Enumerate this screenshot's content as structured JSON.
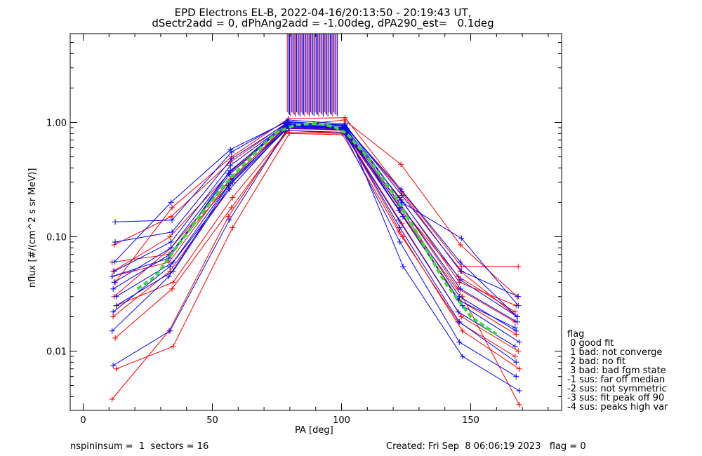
{
  "header": {
    "title_line1": "EPD Electrons EL-B, 2022-04-16/20:13:50 - 20:19:43 UT,",
    "title_line2": "dSectr2add = 0, dPhAng2add = -1.00deg, dPA290_est=   0.1deg"
  },
  "footer": {
    "left": "nspininsum =  1  sectors = 16",
    "right": "Created: Fri Sep  8 06:06:19 2023   flag = 0"
  },
  "legend": {
    "title": "flag",
    "items": [
      " 0 good fit",
      " 1 bad: not converge",
      " 2 bad: no fit",
      " 3 bad: bad fgm state",
      "-1 sus: far off median",
      "-2 sus: not symmetric",
      "-3 sus: fit peak off 90",
      "-4 sus: peaks high var"
    ]
  },
  "colors": {
    "red": "#ff0000",
    "blue": "#0000ff",
    "fit": "#33dd33",
    "axis": "#000000"
  },
  "chart_data": {
    "type": "line",
    "xlabel": "PA [deg]",
    "ylabel": "nflux [#/(cm^2 s sr MeV)]",
    "xlim": [
      -5,
      185
    ],
    "ylim": [
      0.0032,
      6.0
    ],
    "yscale": "log",
    "xticks": [
      0,
      50,
      100,
      150
    ],
    "yticks": [
      {
        "value": 0.01,
        "label": "0.01"
      },
      {
        "value": 0.1,
        "label": "0.10"
      },
      {
        "value": 1.0,
        "label": "1.00"
      }
    ],
    "pa_bins": [
      12,
      34,
      57,
      79,
      101,
      123,
      146,
      168
    ],
    "median_fit": {
      "name": "",
      "x": [
        21,
        28,
        35,
        45,
        55,
        65,
        75,
        82,
        90,
        97,
        102,
        110,
        120,
        130,
        140,
        150,
        160
      ],
      "y": [
        0.035,
        0.045,
        0.075,
        0.15,
        0.29,
        0.5,
        0.82,
        0.95,
        0.98,
        0.92,
        0.8,
        0.5,
        0.24,
        0.1,
        0.04,
        0.02,
        0.014
      ]
    },
    "series": [
      {
        "color": "red",
        "values": [
          0.045,
          0.06,
          0.3,
          0.92,
          0.88,
          0.2,
          0.035,
          0.018
        ]
      },
      {
        "color": "red",
        "values": [
          0.02,
          0.05,
          0.26,
          0.9,
          0.85,
          0.17,
          0.028,
          0.014
        ]
      },
      {
        "color": "red",
        "values": [
          0.085,
          0.15,
          0.45,
          1.0,
          0.95,
          0.25,
          0.05,
          0.02
        ]
      },
      {
        "color": "red",
        "values": [
          0.013,
          0.035,
          0.18,
          0.85,
          0.8,
          0.13,
          0.02,
          0.01
        ]
      },
      {
        "color": "red",
        "values": [
          0.007,
          0.011,
          0.12,
          0.8,
          0.78,
          0.1,
          0.015,
          0.007
        ]
      },
      {
        "color": "red",
        "values": [
          0.0038,
          0.015,
          0.15,
          0.82,
          0.8,
          0.11,
          0.018,
          0.009
        ]
      },
      {
        "color": "red",
        "values": [
          0.05,
          0.1,
          0.36,
          0.95,
          0.9,
          0.22,
          0.04,
          0.025
        ]
      },
      {
        "color": "red",
        "values": [
          0.03,
          0.08,
          0.32,
          0.93,
          1.05,
          0.43,
          0.085,
          0.03
        ]
      },
      {
        "color": "red",
        "values": [
          0.04,
          0.18,
          0.5,
          1.08,
          1.1,
          0.25,
          0.055,
          0.055
        ]
      },
      {
        "color": "red",
        "values": [
          0.025,
          0.04,
          0.22,
          0.88,
          0.86,
          0.15,
          0.03,
          0.0034
        ]
      },
      {
        "color": "red",
        "values": [
          0.06,
          0.07,
          0.28,
          0.91,
          0.88,
          0.19,
          0.045,
          0.022
        ]
      },
      {
        "color": "blue",
        "values": [
          0.035,
          0.07,
          0.35,
          0.95,
          0.9,
          0.18,
          0.03,
          0.015
        ]
      },
      {
        "color": "blue",
        "values": [
          0.05,
          0.09,
          0.42,
          0.98,
          0.93,
          0.21,
          0.042,
          0.02
        ]
      },
      {
        "color": "blue",
        "values": [
          0.135,
          0.14,
          0.55,
          1.05,
          0.97,
          0.2,
          0.097,
          0.025
        ]
      },
      {
        "color": "blue",
        "values": [
          0.025,
          0.05,
          0.3,
          0.92,
          0.88,
          0.15,
          0.025,
          0.012
        ]
      },
      {
        "color": "blue",
        "values": [
          0.015,
          0.045,
          0.28,
          0.9,
          0.86,
          0.14,
          0.022,
          0.011
        ]
      },
      {
        "color": "blue",
        "values": [
          0.0075,
          0.015,
          0.14,
          0.85,
          0.82,
          0.09,
          0.012,
          0.006
        ]
      },
      {
        "color": "blue",
        "values": [
          0.04,
          0.08,
          0.38,
          0.96,
          0.9,
          0.19,
          0.035,
          0.018
        ]
      },
      {
        "color": "blue",
        "values": [
          0.09,
          0.11,
          0.48,
          1.0,
          0.95,
          0.23,
          0.05,
          0.03
        ]
      },
      {
        "color": "blue",
        "values": [
          0.03,
          0.06,
          0.32,
          0.93,
          0.89,
          0.055,
          0.009,
          0.0045
        ]
      },
      {
        "color": "blue",
        "values": [
          0.045,
          0.065,
          0.36,
          0.97,
          0.91,
          0.17,
          0.028,
          0.016
        ]
      },
      {
        "color": "blue",
        "values": [
          0.022,
          0.055,
          0.26,
          0.89,
          0.87,
          0.12,
          0.018,
          0.008
        ]
      },
      {
        "color": "blue",
        "values": [
          0.06,
          0.2,
          0.58,
          1.02,
          0.94,
          0.26,
          0.06,
          0.02
        ]
      }
    ]
  }
}
